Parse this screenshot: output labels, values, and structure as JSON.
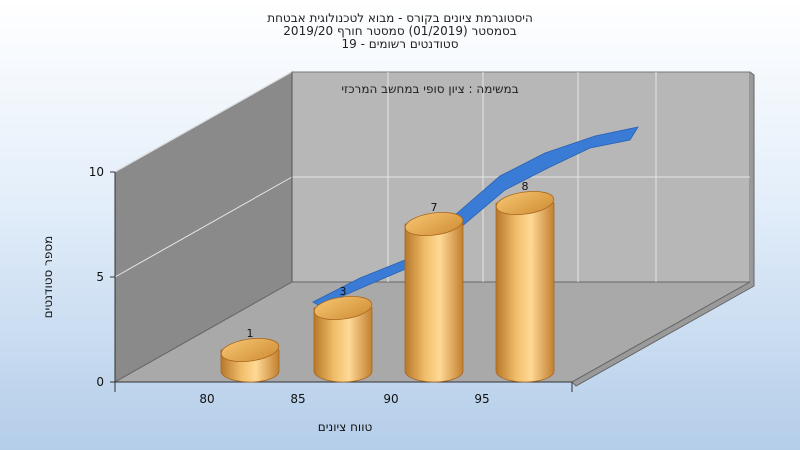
{
  "chart_data": {
    "type": "bar",
    "title_lines": [
      "היסטוגרמת ציונים בקורס - מבוא לטכנולוגית אבטחת",
      "בסמסטר  (01/2019)  סמסטר חורף 2019/20",
      "סטודנטים רשומים - 19"
    ],
    "subtitle": "במשימה : ציון סופי במחשב המרכזי",
    "xlabel": "טווח ציונים",
    "ylabel": "מספר סטודנטים",
    "x_ticks": [
      "80",
      "85",
      "90",
      "95"
    ],
    "y_ticks": [
      "0",
      "5",
      "10"
    ],
    "ylim": [
      0,
      10
    ],
    "categories": [
      "80",
      "85",
      "90",
      "95"
    ],
    "values": [
      1,
      3,
      7,
      8
    ],
    "data_labels": [
      "1",
      "3",
      "7",
      "8"
    ],
    "cumulative_line": "ribbon behind bars",
    "colors": {
      "bar": "#e0a040",
      "ribbon": "#3a7bd5",
      "back_wall": "#b5b5b5",
      "side_wall": "#8c8c8c",
      "floor": "#a9a9a9"
    }
  }
}
